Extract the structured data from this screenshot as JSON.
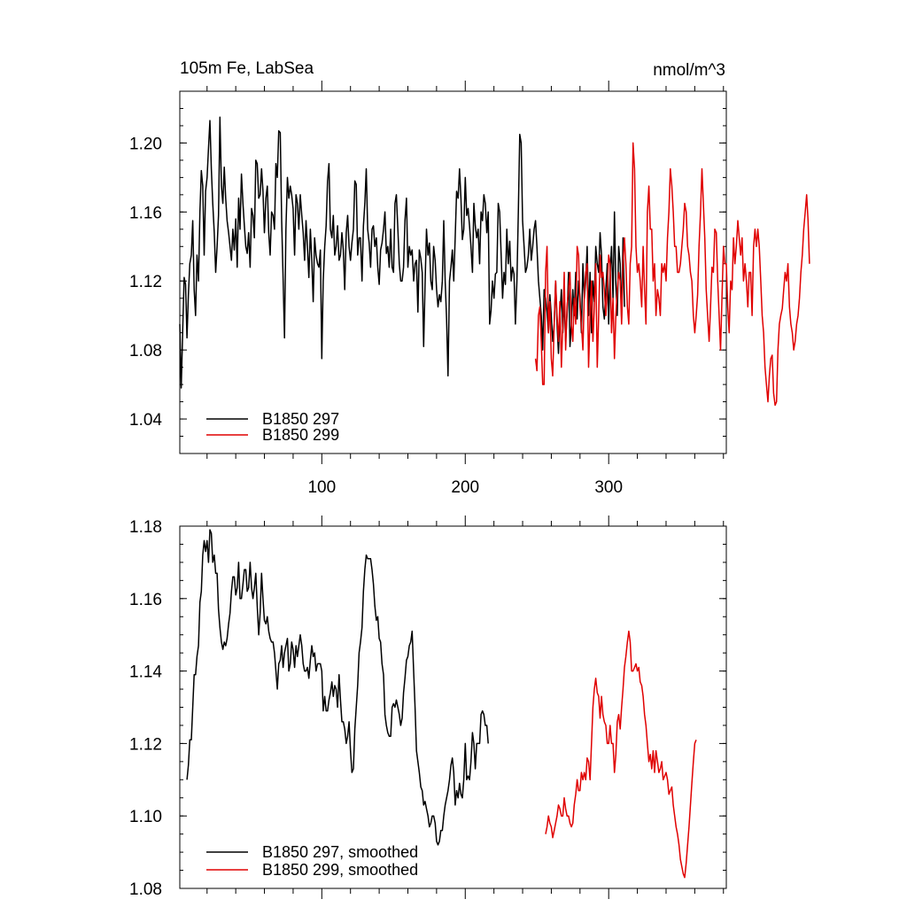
{
  "colors": {
    "series1": "#000000",
    "series2": "#e00000",
    "axis": "#000000"
  },
  "chart_data": [
    {
      "type": "line",
      "title": "105m Fe, LabSea",
      "units": "nmol/m^3",
      "xlim": [
        1,
        382
      ],
      "ylim": [
        1.02,
        1.23
      ],
      "xticks": [
        100,
        200,
        300
      ],
      "xtick_labels": [
        "100",
        "200",
        "300"
      ],
      "yticks": [
        1.04,
        1.08,
        1.12,
        1.16,
        1.2
      ],
      "ytick_labels": [
        "1.04",
        "1.08",
        "1.12",
        "1.16",
        "1.20"
      ],
      "grid": false,
      "legend_position": "bottom-left",
      "series": [
        {
          "name": "B1850 297",
          "color": "#000000",
          "x_start": 1,
          "values": [
            1.095,
            1.058,
            1.09,
            1.122,
            1.118,
            1.087,
            1.112,
            1.13,
            1.135,
            1.155,
            1.115,
            1.1,
            1.135,
            1.12,
            1.16,
            1.184,
            1.175,
            1.135,
            1.172,
            1.18,
            1.197,
            1.213,
            1.185,
            1.165,
            1.148,
            1.125,
            1.14,
            1.158,
            1.215,
            1.175,
            1.165,
            1.186,
            1.168,
            1.155,
            1.148,
            1.14,
            1.132,
            1.15,
            1.138,
            1.156,
            1.128,
            1.168,
            1.15,
            1.182,
            1.165,
            1.152,
            1.14,
            1.136,
            1.148,
            1.128,
            1.162,
            1.158,
            1.145,
            1.19,
            1.188,
            1.168,
            1.17,
            1.185,
            1.172,
            1.148,
            1.168,
            1.175,
            1.148,
            1.135,
            1.16,
            1.158,
            1.15,
            1.188,
            1.18,
            1.207,
            1.206,
            1.155,
            1.122,
            1.087,
            1.15,
            1.18,
            1.168,
            1.175,
            1.17,
            1.162,
            1.135,
            1.17,
            1.165,
            1.15,
            1.17,
            1.158,
            1.148,
            1.132,
            1.155,
            1.14,
            1.122,
            1.15,
            1.132,
            1.108,
            1.145,
            1.135,
            1.13,
            1.128,
            1.138,
            1.075,
            1.12,
            1.14,
            1.152,
            1.178,
            1.188,
            1.15,
            1.145,
            1.158,
            1.135,
            1.14,
            1.152,
            1.132,
            1.135,
            1.148,
            1.138,
            1.115,
            1.148,
            1.158,
            1.14,
            1.132,
            1.142,
            1.15,
            1.178,
            1.176,
            1.135,
            1.145,
            1.145,
            1.12,
            1.152,
            1.165,
            1.185,
            1.15,
            1.142,
            1.128,
            1.15,
            1.152,
            1.14,
            1.145,
            1.128,
            1.118,
            1.138,
            1.142,
            1.15,
            1.16,
            1.136,
            1.14,
            1.128,
            1.15,
            1.128,
            1.125,
            1.165,
            1.17,
            1.15,
            1.13,
            1.12,
            1.12,
            1.128,
            1.155,
            1.168,
            1.128,
            1.14,
            1.135,
            1.138,
            1.12,
            1.13,
            1.132,
            1.102,
            1.138,
            1.133,
            1.125,
            1.082,
            1.118,
            1.15,
            1.135,
            1.142,
            1.12,
            1.115,
            1.14,
            1.132,
            1.115,
            1.105,
            1.112,
            1.108,
            1.12,
            1.155,
            1.12,
            1.098,
            1.065,
            1.12,
            1.128,
            1.138,
            1.12,
            1.145,
            1.172,
            1.168,
            1.185,
            1.168,
            1.144,
            1.15,
            1.18,
            1.158,
            1.162,
            1.152,
            1.14,
            1.125,
            1.165,
            1.152,
            1.145,
            1.15,
            1.13,
            1.16,
            1.155,
            1.17,
            1.165,
            1.148,
            1.16,
            1.095,
            1.103,
            1.12,
            1.11,
            1.124,
            1.125,
            1.165,
            1.16,
            1.135,
            1.11,
            1.125,
            1.118,
            1.15,
            1.13,
            1.143,
            1.12,
            1.128,
            1.124,
            1.095,
            1.12,
            1.16,
            1.205,
            1.2,
            1.155,
            1.14,
            1.125,
            1.128,
            1.135,
            1.15,
            1.132,
            1.14,
            1.15,
            1.155,
            1.14,
            1.12,
            1.11,
            1.1,
            1.08,
            1.115,
            1.11,
            1.102,
            1.09,
            1.112,
            1.1,
            1.085,
            1.095,
            1.12,
            1.095,
            1.078,
            1.1,
            1.115,
            1.09,
            1.11,
            1.085,
            1.1,
            1.125,
            1.082,
            1.095,
            1.115,
            1.1,
            1.125,
            1.098,
            1.12,
            1.11,
            1.09,
            1.13,
            1.11,
            1.12,
            1.14,
            1.1,
            1.125,
            1.09,
            1.12,
            1.108,
            1.14,
            1.13,
            1.125,
            1.148,
            1.135,
            1.105,
            1.098,
            1.115,
            1.13,
            1.095,
            1.125,
            1.14,
            1.11,
            1.16,
            1.118,
            1.1,
            1.14,
            1.13,
            1.098,
            1.145,
            1.105
          ]
        },
        {
          "name": "B1850 299",
          "color": "#e00000",
          "x_start": 249,
          "values": [
            1.075,
            1.068,
            1.1,
            1.105,
            1.085,
            1.06,
            1.06,
            1.125,
            1.14,
            1.09,
            1.108,
            1.075,
            1.065,
            1.095,
            1.12,
            1.1,
            1.085,
            1.108,
            1.07,
            1.095,
            1.125,
            1.08,
            1.105,
            1.115,
            1.125,
            1.095,
            1.085,
            1.11,
            1.095,
            1.14,
            1.135,
            1.105,
            1.095,
            1.08,
            1.112,
            1.125,
            1.13,
            1.07,
            1.1,
            1.12,
            1.085,
            1.105,
            1.13,
            1.07,
            1.1,
            1.135,
            1.122,
            1.125,
            1.115,
            1.1,
            1.115,
            1.135,
            1.13,
            1.09,
            1.11,
            1.075,
            1.1,
            1.115,
            1.125,
            1.12,
            1.095,
            1.13,
            1.145,
            1.13,
            1.105,
            1.095,
            1.13,
            1.14,
            1.2,
            1.185,
            1.14,
            1.125,
            1.13,
            1.12,
            1.105,
            1.14,
            1.115,
            1.095,
            1.16,
            1.175,
            1.15,
            1.15,
            1.12,
            1.13,
            1.1,
            1.115,
            1.11,
            1.1,
            1.13,
            1.125,
            1.13,
            1.12,
            1.145,
            1.16,
            1.185,
            1.175,
            1.16,
            1.14,
            1.14,
            1.125,
            1.125,
            1.13,
            1.14,
            1.15,
            1.165,
            1.16,
            1.14,
            1.135,
            1.125,
            1.12,
            1.1,
            1.09,
            1.1,
            1.112,
            1.14,
            1.16,
            1.185,
            1.165,
            1.145,
            1.115,
            1.1,
            1.085,
            1.105,
            1.128,
            1.125,
            1.15,
            1.148,
            1.12,
            1.1,
            1.08,
            1.11,
            1.14,
            1.13,
            1.13,
            1.105,
            1.09,
            1.12,
            1.115,
            1.145,
            1.13,
            1.14,
            1.155,
            1.145,
            1.135,
            1.145,
            1.12,
            1.13,
            1.12,
            1.105,
            1.125,
            1.125,
            1.1,
            1.14,
            1.15,
            1.14,
            1.15,
            1.14,
            1.12,
            1.1,
            1.09,
            1.07,
            1.06,
            1.05,
            1.065,
            1.075,
            1.077,
            1.055,
            1.048,
            1.05,
            1.08,
            1.095,
            1.1,
            1.104,
            1.115,
            1.125,
            1.12,
            1.13,
            1.105,
            1.095,
            1.09,
            1.08,
            1.085,
            1.095,
            1.1,
            1.11,
            1.125,
            1.135,
            1.15,
            1.16,
            1.17,
            1.155,
            1.13
          ]
        }
      ]
    },
    {
      "type": "line",
      "title": "",
      "xlim": [
        1,
        382
      ],
      "ylim": [
        1.08,
        1.18
      ],
      "yticks": [
        1.08,
        1.1,
        1.12,
        1.14,
        1.16,
        1.18
      ],
      "ytick_labels": [
        "1.08",
        "1.10",
        "1.12",
        "1.14",
        "1.16",
        "1.18"
      ],
      "grid": false,
      "legend_position": "bottom-left",
      "series": [
        {
          "name": "B1850 297, smoothed",
          "color": "#000000",
          "x_start": 6,
          "values": [
            1.11,
            1.114,
            1.121,
            1.121,
            1.13,
            1.139,
            1.139,
            1.144,
            1.147,
            1.159,
            1.162,
            1.172,
            1.176,
            1.173,
            1.176,
            1.17,
            1.179,
            1.178,
            1.17,
            1.172,
            1.167,
            1.167,
            1.157,
            1.152,
            1.148,
            1.146,
            1.148,
            1.147,
            1.149,
            1.153,
            1.156,
            1.162,
            1.166,
            1.166,
            1.161,
            1.163,
            1.17,
            1.16,
            1.16,
            1.164,
            1.168,
            1.168,
            1.162,
            1.163,
            1.17,
            1.163,
            1.16,
            1.163,
            1.167,
            1.158,
            1.15,
            1.156,
            1.167,
            1.16,
            1.154,
            1.153,
            1.155,
            1.151,
            1.149,
            1.148,
            1.148,
            1.145,
            1.14,
            1.135,
            1.142,
            1.143,
            1.147,
            1.141,
            1.145,
            1.147,
            1.149,
            1.14,
            1.142,
            1.148,
            1.146,
            1.141,
            1.147,
            1.144,
            1.147,
            1.15,
            1.147,
            1.142,
            1.14,
            1.14,
            1.141,
            1.138,
            1.143,
            1.147,
            1.144,
            1.145,
            1.14,
            1.142,
            1.142,
            1.142,
            1.14,
            1.129,
            1.133,
            1.129,
            1.129,
            1.132,
            1.134,
            1.137,
            1.133,
            1.136,
            1.135,
            1.13,
            1.139,
            1.132,
            1.126,
            1.126,
            1.124,
            1.12,
            1.122,
            1.126,
            1.118,
            1.112,
            1.113,
            1.124,
            1.13,
            1.136,
            1.145,
            1.148,
            1.152,
            1.162,
            1.168,
            1.172,
            1.171,
            1.171,
            1.171,
            1.168,
            1.164,
            1.158,
            1.154,
            1.155,
            1.149,
            1.148,
            1.142,
            1.139,
            1.128,
            1.125,
            1.123,
            1.122,
            1.122,
            1.13,
            1.131,
            1.13,
            1.132,
            1.13,
            1.128,
            1.125,
            1.127,
            1.134,
            1.138,
            1.143,
            1.144,
            1.147,
            1.148,
            1.151,
            1.14,
            1.13,
            1.118,
            1.115,
            1.112,
            1.108,
            1.107,
            1.103,
            1.104,
            1.102,
            1.1,
            1.097,
            1.098,
            1.1,
            1.1,
            1.098,
            1.093,
            1.092,
            1.093,
            1.096,
            1.096,
            1.1,
            1.103,
            1.105,
            1.107,
            1.11,
            1.114,
            1.116,
            1.112,
            1.103,
            1.107,
            1.105,
            1.109,
            1.106,
            1.105,
            1.11,
            1.12,
            1.11,
            1.111,
            1.11,
            1.115,
            1.123,
            1.12,
            1.113,
            1.12,
            1.12,
            1.12,
            1.128,
            1.129,
            1.128,
            1.125,
            1.125,
            1.12
          ]
        },
        {
          "name": "B1850 299, smoothed",
          "color": "#e00000",
          "x_start": 256,
          "values": [
            1.095,
            1.097,
            1.1,
            1.098,
            1.097,
            1.094,
            1.096,
            1.098,
            1.1,
            1.103,
            1.102,
            1.1,
            1.1,
            1.105,
            1.102,
            1.1,
            1.1,
            1.098,
            1.097,
            1.098,
            1.103,
            1.106,
            1.11,
            1.107,
            1.107,
            1.112,
            1.11,
            1.112,
            1.11,
            1.116,
            1.115,
            1.11,
            1.12,
            1.13,
            1.135,
            1.138,
            1.134,
            1.133,
            1.127,
            1.133,
            1.128,
            1.126,
            1.125,
            1.12,
            1.12,
            1.125,
            1.12,
            1.12,
            1.112,
            1.117,
            1.126,
            1.128,
            1.124,
            1.13,
            1.135,
            1.141,
            1.144,
            1.148,
            1.151,
            1.148,
            1.14,
            1.14,
            1.141,
            1.142,
            1.14,
            1.141,
            1.137,
            1.136,
            1.133,
            1.128,
            1.125,
            1.12,
            1.115,
            1.117,
            1.113,
            1.118,
            1.112,
            1.118,
            1.115,
            1.112,
            1.113,
            1.115,
            1.11,
            1.111,
            1.112,
            1.11,
            1.106,
            1.107,
            1.108,
            1.103,
            1.1,
            1.097,
            1.095,
            1.092,
            1.088,
            1.086,
            1.084,
            1.083,
            1.087,
            1.092,
            1.097,
            1.103,
            1.109,
            1.115,
            1.12,
            1.121
          ]
        }
      ]
    }
  ]
}
